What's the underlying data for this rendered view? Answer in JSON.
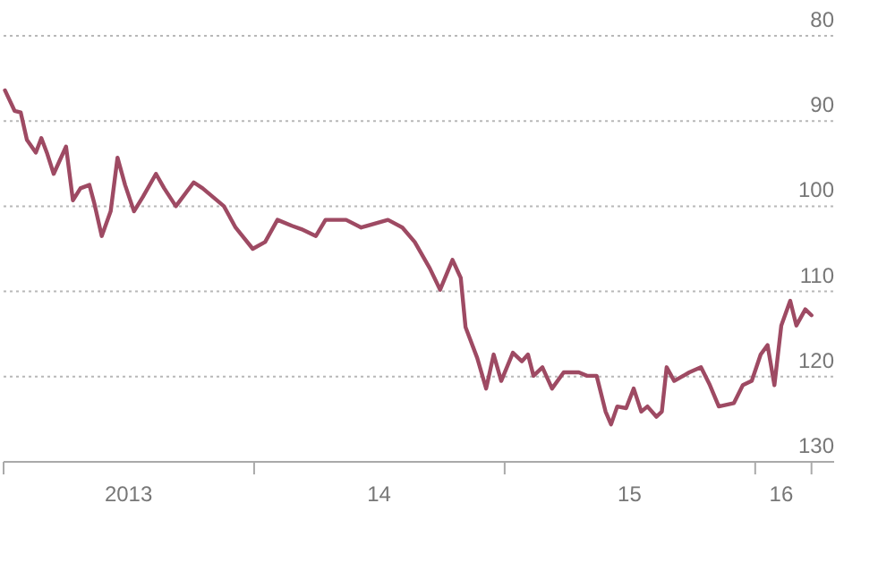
{
  "chart_data": {
    "type": "line",
    "x": [
      "2013-01-03",
      "2013-01-17",
      "2013-01-26",
      "2013-02-04",
      "2013-02-17",
      "2013-02-25",
      "2013-03-05",
      "2013-03-15",
      "2013-04-02",
      "2013-04-12",
      "2013-04-23",
      "2013-05-06",
      "2013-05-13",
      "2013-05-24",
      "2013-06-06",
      "2013-06-16",
      "2013-06-27",
      "2013-07-10",
      "2013-07-23",
      "2013-08-11",
      "2013-08-23",
      "2013-09-09",
      "2013-10-05",
      "2013-10-18",
      "2013-11-18",
      "2013-12-05",
      "2013-12-30",
      "2014-01-17",
      "2014-02-04",
      "2014-02-25",
      "2014-03-11",
      "2014-04-01",
      "2014-04-15",
      "2014-05-15",
      "2014-06-06",
      "2014-07-15",
      "2014-08-05",
      "2014-08-23",
      "2014-09-14",
      "2014-09-29",
      "2014-10-17",
      "2014-10-29",
      "2014-11-05",
      "2014-11-22",
      "2014-12-05",
      "2014-12-16",
      "2014-12-27",
      "2015-01-13",
      "2015-01-26",
      "2015-02-04",
      "2015-02-12",
      "2015-02-25",
      "2015-03-11",
      "2015-03-28",
      "2015-04-19",
      "2015-05-01",
      "2015-05-15",
      "2015-05-28",
      "2015-06-05",
      "2015-06-14",
      "2015-06-27",
      "2015-07-08",
      "2015-07-19",
      "2015-07-28",
      "2015-08-10",
      "2015-08-18",
      "2015-08-25",
      "2015-09-05",
      "2015-09-27",
      "2015-10-14",
      "2015-10-27",
      "2015-11-09",
      "2015-12-01",
      "2015-12-14",
      "2015-12-27",
      "2016-01-09",
      "2016-01-19",
      "2016-01-29",
      "2016-02-08",
      "2016-02-21",
      "2016-03-01",
      "2016-03-14",
      "2016-03-23"
    ],
    "series": [
      {
        "color": "#9e4a63",
        "values": [
          86.4,
          88.8,
          89,
          92.2,
          93.7,
          92,
          93.7,
          96.2,
          93,
          99.3,
          97.9,
          97.5,
          99.6,
          103.5,
          100.6,
          94.3,
          97.5,
          100.6,
          98.9,
          96.2,
          97.9,
          100,
          97.2,
          97.9,
          100,
          102.5,
          105,
          104.2,
          101.6,
          102.3,
          102.7,
          103.5,
          101.6,
          101.6,
          102.5,
          101.6,
          102.5,
          104.2,
          107.3,
          109.8,
          106.3,
          108.4,
          114.2,
          117.8,
          121.4,
          117.4,
          120.5,
          117.2,
          118.2,
          117.4,
          119.9,
          118.9,
          121.4,
          119.5,
          119.5,
          119.9,
          119.9,
          124.1,
          125.6,
          123.5,
          123.7,
          121.4,
          124.1,
          123.5,
          124.7,
          124.1,
          118.9,
          120.5,
          119.5,
          118.9,
          121,
          123.5,
          123.1,
          121,
          120.5,
          117.4,
          116.3,
          121,
          114,
          111.1,
          114,
          112.1,
          112.8
        ]
      }
    ],
    "xlim": [
      "2013-01-01",
      "2016-04-25"
    ],
    "xticks": [
      {
        "value": "2013-01-01",
        "label": null
      },
      {
        "value": "2013-07-02",
        "label": "2013"
      },
      {
        "value": "2014-01-01",
        "label": null
      },
      {
        "value": "2014-07-02",
        "label": "14"
      },
      {
        "value": "2015-01-01",
        "label": null
      },
      {
        "value": "2015-07-02",
        "label": "15"
      },
      {
        "value": "2016-01-01",
        "label": null
      },
      {
        "value": "2016-02-08",
        "label": "16"
      },
      {
        "value": "2016-03-23",
        "label": null
      }
    ],
    "ylim": [
      130,
      80
    ],
    "yticks": [
      80,
      90,
      100,
      110,
      120,
      130
    ],
    "grid": "y",
    "line_style": "solid"
  }
}
